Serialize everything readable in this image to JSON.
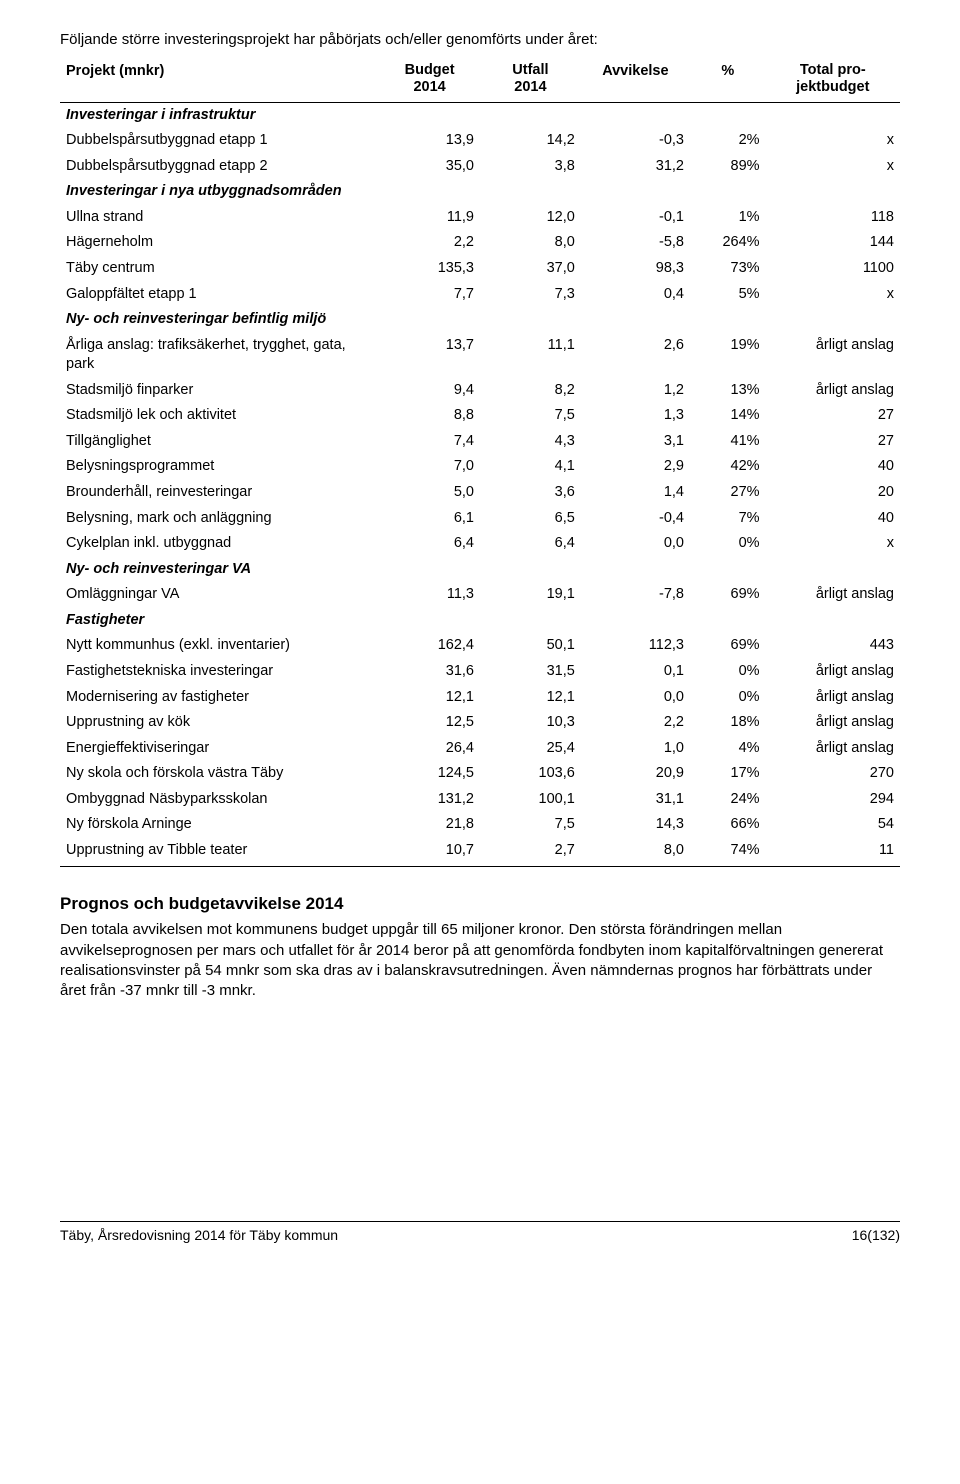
{
  "intro": "Följande större investeringsprojekt har påbörjats och/eller genomförts under året:",
  "table": {
    "columns": [
      {
        "label": "Projekt (mnkr)",
        "align": "left"
      },
      {
        "label": "Budget\n2014",
        "align": "center"
      },
      {
        "label": "Utfall\n2014",
        "align": "center"
      },
      {
        "label": "Avvikelse",
        "align": "center"
      },
      {
        "label": "%",
        "align": "center"
      },
      {
        "label": "Total pro-\njektbudget",
        "align": "center"
      }
    ],
    "rows": [
      {
        "type": "section",
        "label": "Investeringar i infrastruktur"
      },
      {
        "type": "data",
        "label": "Dubbelspårsutbyggnad etapp 1",
        "v": [
          "13,9",
          "14,2",
          "-0,3",
          "2%",
          "x"
        ]
      },
      {
        "type": "data",
        "label": "Dubbelspårsutbyggnad etapp 2",
        "v": [
          "35,0",
          "3,8",
          "31,2",
          "89%",
          "x"
        ]
      },
      {
        "type": "section",
        "label": "Investeringar i nya utbyggnadsområden"
      },
      {
        "type": "data",
        "label": "Ullna strand",
        "v": [
          "11,9",
          "12,0",
          "-0,1",
          "1%",
          "118"
        ]
      },
      {
        "type": "data",
        "label": "Hägerneholm",
        "v": [
          "2,2",
          "8,0",
          "-5,8",
          "264%",
          "144"
        ]
      },
      {
        "type": "data",
        "label": "Täby centrum",
        "v": [
          "135,3",
          "37,0",
          "98,3",
          "73%",
          "1100"
        ]
      },
      {
        "type": "data",
        "label": "Galoppfältet etapp 1",
        "v": [
          "7,7",
          "7,3",
          "0,4",
          "5%",
          "x"
        ]
      },
      {
        "type": "section",
        "label": "Ny- och reinvesteringar befintlig miljö"
      },
      {
        "type": "data",
        "label": "Årliga anslag: trafiksäkerhet, trygghet, gata, park",
        "v": [
          "13,7",
          "11,1",
          "2,6",
          "19%",
          "årligt anslag"
        ]
      },
      {
        "type": "data",
        "label": "Stadsmiljö finparker",
        "v": [
          "9,4",
          "8,2",
          "1,2",
          "13%",
          "årligt anslag"
        ]
      },
      {
        "type": "data",
        "label": "Stadsmiljö lek och aktivitet",
        "v": [
          "8,8",
          "7,5",
          "1,3",
          "14%",
          "27"
        ]
      },
      {
        "type": "data",
        "label": "Tillgänglighet",
        "v": [
          "7,4",
          "4,3",
          "3,1",
          "41%",
          "27"
        ]
      },
      {
        "type": "data",
        "label": "Belysningsprogrammet",
        "v": [
          "7,0",
          "4,1",
          "2,9",
          "42%",
          "40"
        ]
      },
      {
        "type": "data",
        "label": "Brounderhåll, reinvesteringar",
        "v": [
          "5,0",
          "3,6",
          "1,4",
          "27%",
          "20"
        ]
      },
      {
        "type": "data",
        "label": "Belysning, mark och anläggning",
        "v": [
          "6,1",
          "6,5",
          "-0,4",
          "7%",
          "40"
        ]
      },
      {
        "type": "data",
        "label": "Cykelplan inkl. utbyggnad",
        "v": [
          "6,4",
          "6,4",
          "0,0",
          "0%",
          "x"
        ]
      },
      {
        "type": "section",
        "label": "Ny- och reinvesteringar VA"
      },
      {
        "type": "data",
        "label": "Omläggningar VA",
        "v": [
          "11,3",
          "19,1",
          "-7,8",
          "69%",
          "årligt anslag"
        ]
      },
      {
        "type": "section",
        "label": "Fastigheter"
      },
      {
        "type": "data",
        "label": "Nytt kommunhus (exkl. inventarier)",
        "v": [
          "162,4",
          "50,1",
          "112,3",
          "69%",
          "443"
        ]
      },
      {
        "type": "data",
        "label": "Fastighetstekniska investeringar",
        "v": [
          "31,6",
          "31,5",
          "0,1",
          "0%",
          "årligt anslag"
        ]
      },
      {
        "type": "data",
        "label": "Modernisering av fastigheter",
        "v": [
          "12,1",
          "12,1",
          "0,0",
          "0%",
          "årligt anslag"
        ]
      },
      {
        "type": "data",
        "label": "Upprustning av kök",
        "v": [
          "12,5",
          "10,3",
          "2,2",
          "18%",
          "årligt anslag"
        ]
      },
      {
        "type": "data",
        "label": "Energieffektiviseringar",
        "v": [
          "26,4",
          "25,4",
          "1,0",
          "4%",
          "årligt anslag"
        ]
      },
      {
        "type": "data",
        "label": "Ny skola och förskola västra Täby",
        "v": [
          "124,5",
          "103,6",
          "20,9",
          "17%",
          "270"
        ]
      },
      {
        "type": "data",
        "label": "Ombyggnad Näsbyparksskolan",
        "v": [
          "131,2",
          "100,1",
          "31,1",
          "24%",
          "294"
        ]
      },
      {
        "type": "data",
        "label": "Ny förskola Arninge",
        "v": [
          "21,8",
          "7,5",
          "14,3",
          "66%",
          "54"
        ]
      },
      {
        "type": "data",
        "label": "Upprustning av Tibble teater",
        "v": [
          "10,7",
          "2,7",
          "8,0",
          "74%",
          "11"
        ]
      }
    ]
  },
  "section": {
    "heading": "Prognos och budgetavvikelse 2014",
    "body": "Den totala avvikelsen mot kommunens budget uppgår till 65 miljoner kronor. Den största förändringen mellan avvikelseprognosen per mars och utfallet för år 2014 beror på att genomförda fondbyten inom kapitalförvaltningen genererat realisationsvinster på 54 mnkr som ska dras av i balanskravsutredningen. Även nämndernas prognos har förbättrats under året från -37 mnkr till -3 mnkr."
  },
  "footer": {
    "left": "Täby, Årsredovisning 2014 för Täby kommun",
    "right": "16(132)"
  }
}
